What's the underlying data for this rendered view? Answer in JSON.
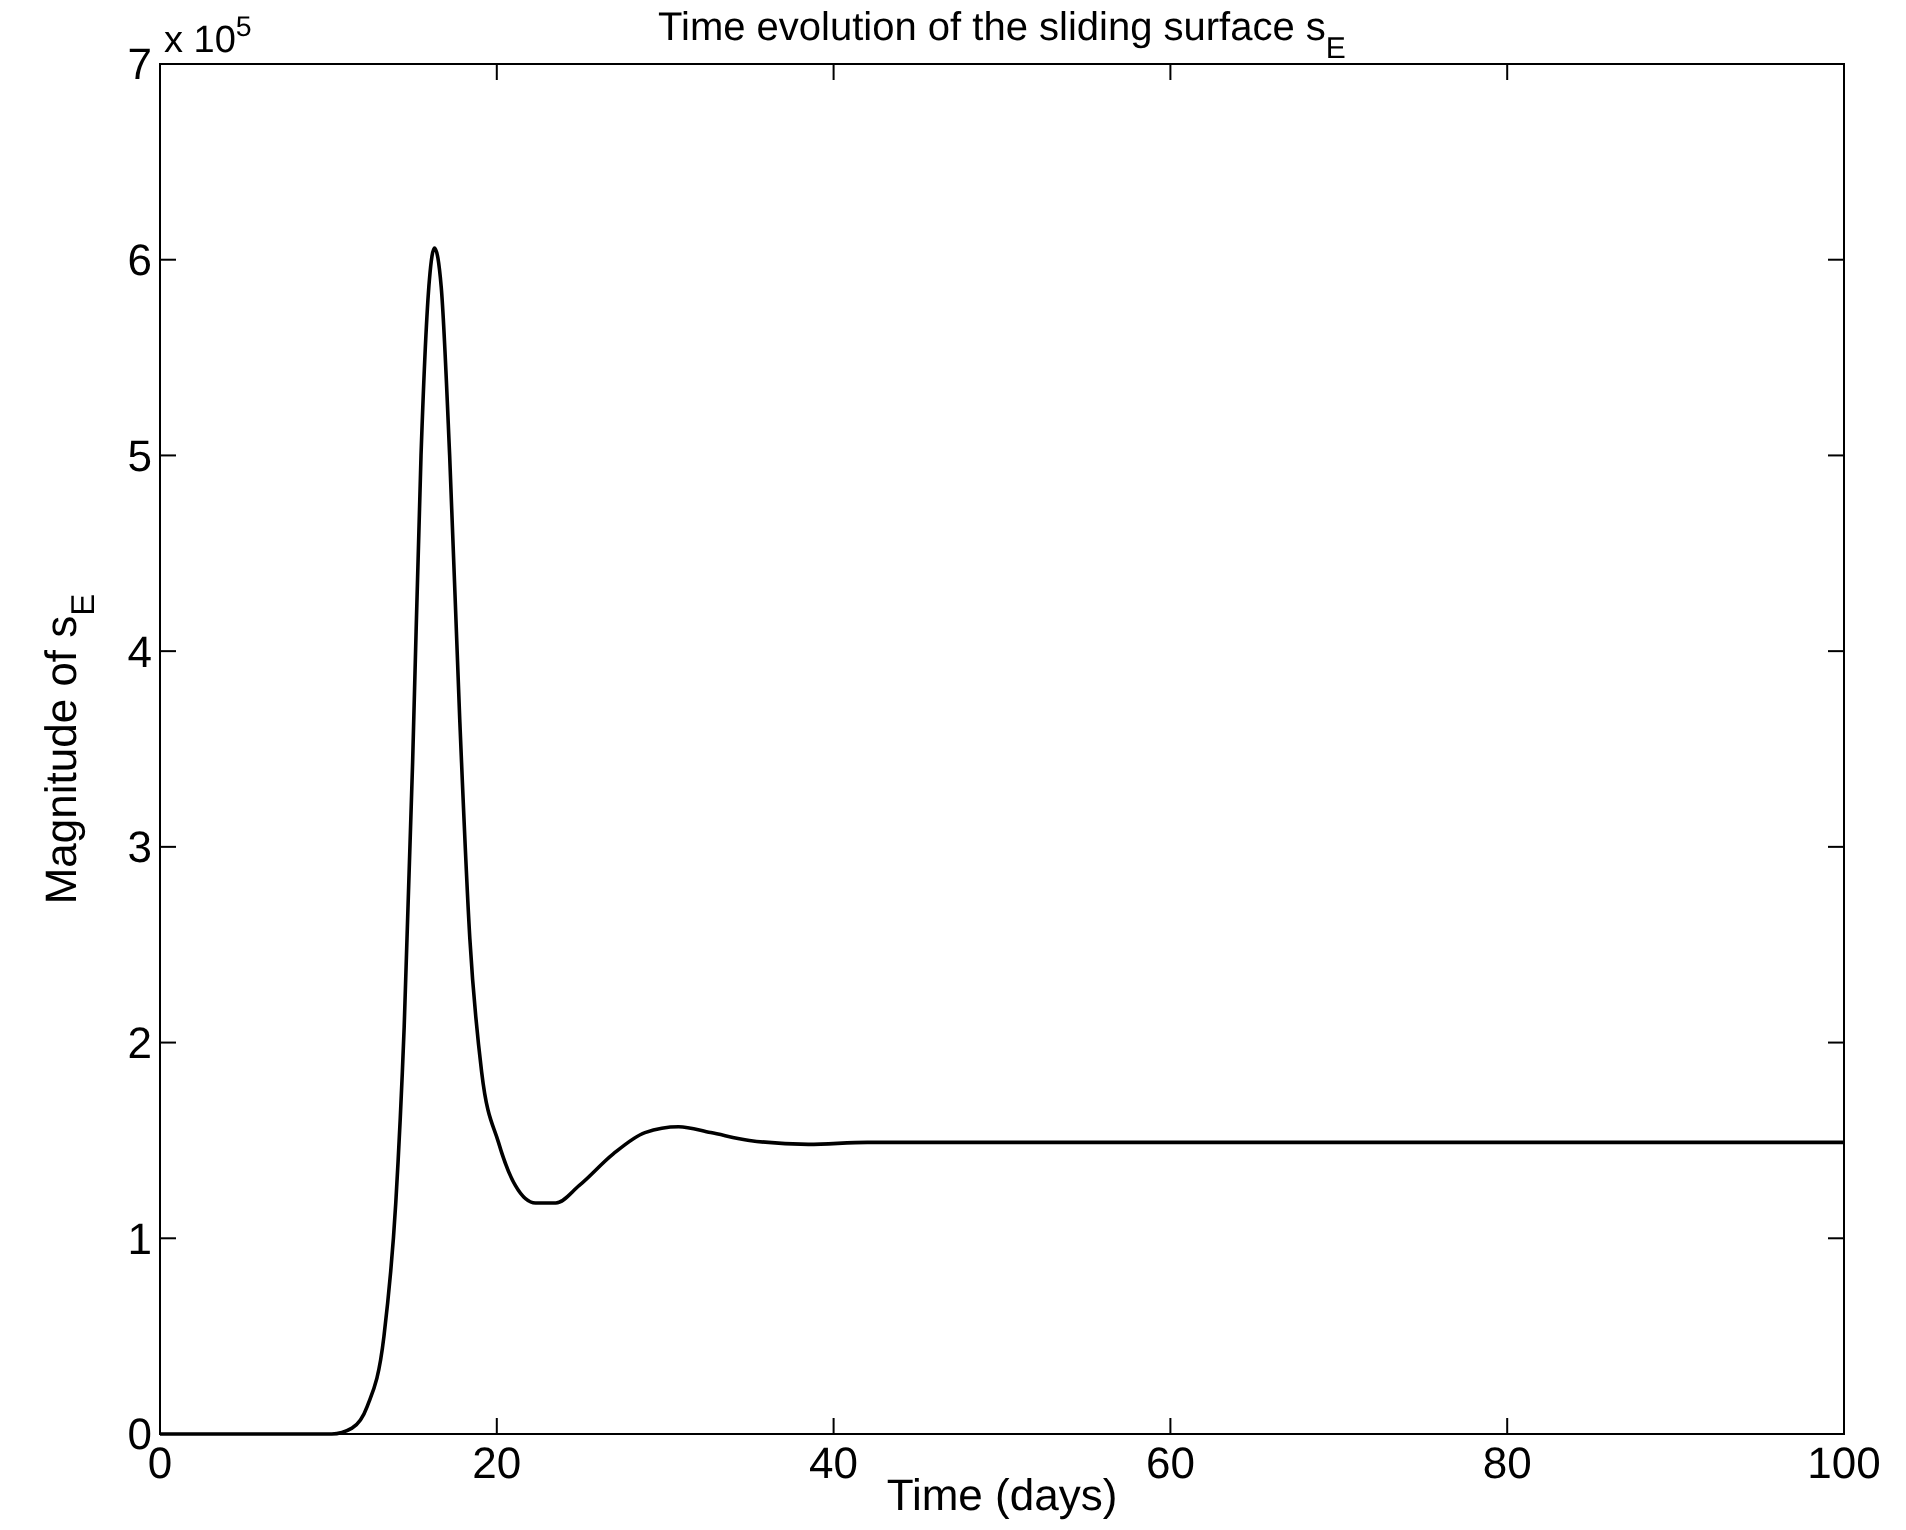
{
  "chart_data": {
    "type": "line",
    "title": "Time evolution of the sliding surface s$_{E}$",
    "xlabel": "Time (days)",
    "ylabel": "Magnitude of s$_{E}$",
    "annotations": [
      "x 10$^{5}$"
    ],
    "x": [
      0,
      5,
      10.2,
      11.4,
      12.3,
      13.3,
      14.0,
      14.5,
      15.0,
      15.5,
      16.0,
      16.3,
      16.7,
      17.2,
      17.8,
      18.4,
      19.1,
      20.1,
      21.1,
      22.3,
      23.5,
      24.9,
      26.9,
      28.8,
      30.8,
      32.7,
      35,
      38.5,
      42,
      50,
      60,
      70,
      80,
      90,
      100
    ],
    "series": [
      {
        "color": "#000000",
        "values": [
          0,
          0,
          0,
          0.03,
          0.14,
          0.5,
          1.18,
          2.08,
          3.43,
          5.0,
          5.9,
          6.06,
          5.86,
          5.0,
          3.65,
          2.53,
          1.85,
          1.49,
          1.27,
          1.18,
          1.18,
          1.27,
          1.43,
          1.54,
          1.57,
          1.54,
          1.5,
          1.48,
          1.49,
          1.49,
          1.49,
          1.49,
          1.49,
          1.49,
          1.49
        ]
      }
    ],
    "xlim": [
      0,
      100
    ],
    "xticks": [
      0,
      20,
      40,
      60,
      80,
      100
    ],
    "ylim": [
      0,
      7
    ],
    "yticks": [
      0,
      1,
      2,
      3,
      4,
      5,
      6,
      7
    ],
    "grid": false,
    "line_style": "solid",
    "marker": "none"
  }
}
